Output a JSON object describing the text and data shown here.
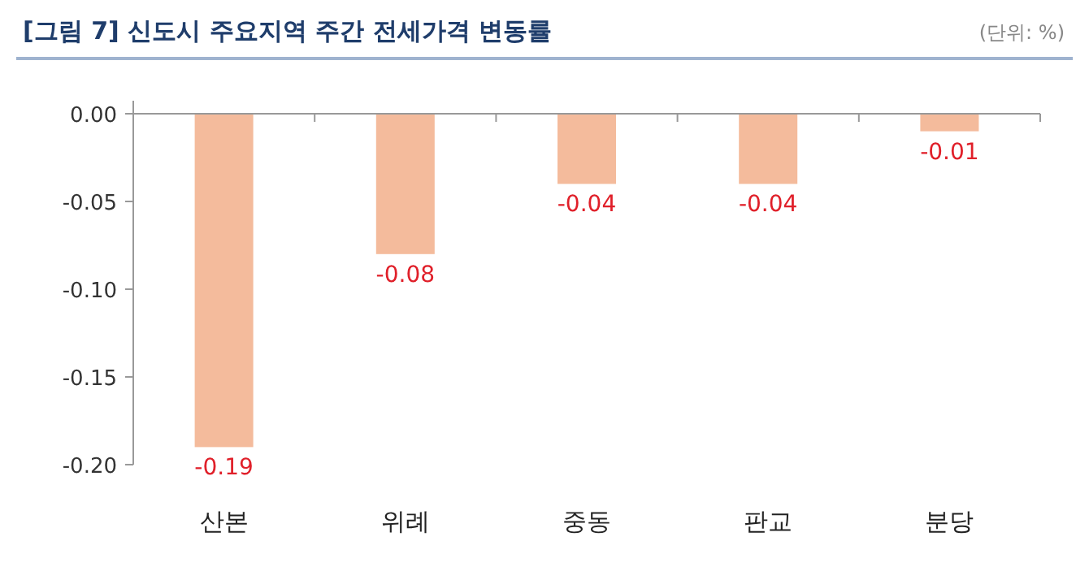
{
  "chart_data": {
    "type": "bar",
    "title": "[그림 7] 신도시 주요지역 주간 전세가격 변동률",
    "annotations": [
      "(단위: %)"
    ],
    "categories": [
      "산본",
      "위례",
      "중동",
      "판교",
      "분당"
    ],
    "values": [
      -0.19,
      -0.08,
      -0.04,
      -0.04,
      -0.01
    ],
    "color": "#f4bb9c",
    "ylim": [
      -0.2,
      0
    ],
    "yticks": [
      {
        "value": 0,
        "label": "0.00"
      },
      {
        "value": -0.05,
        "label": "-0.05"
      },
      {
        "value": -0.1,
        "label": "-0.10"
      },
      {
        "value": -0.15,
        "label": "-0.15"
      },
      {
        "value": -0.2,
        "label": "-0.20"
      }
    ],
    "data_labels": true
  }
}
